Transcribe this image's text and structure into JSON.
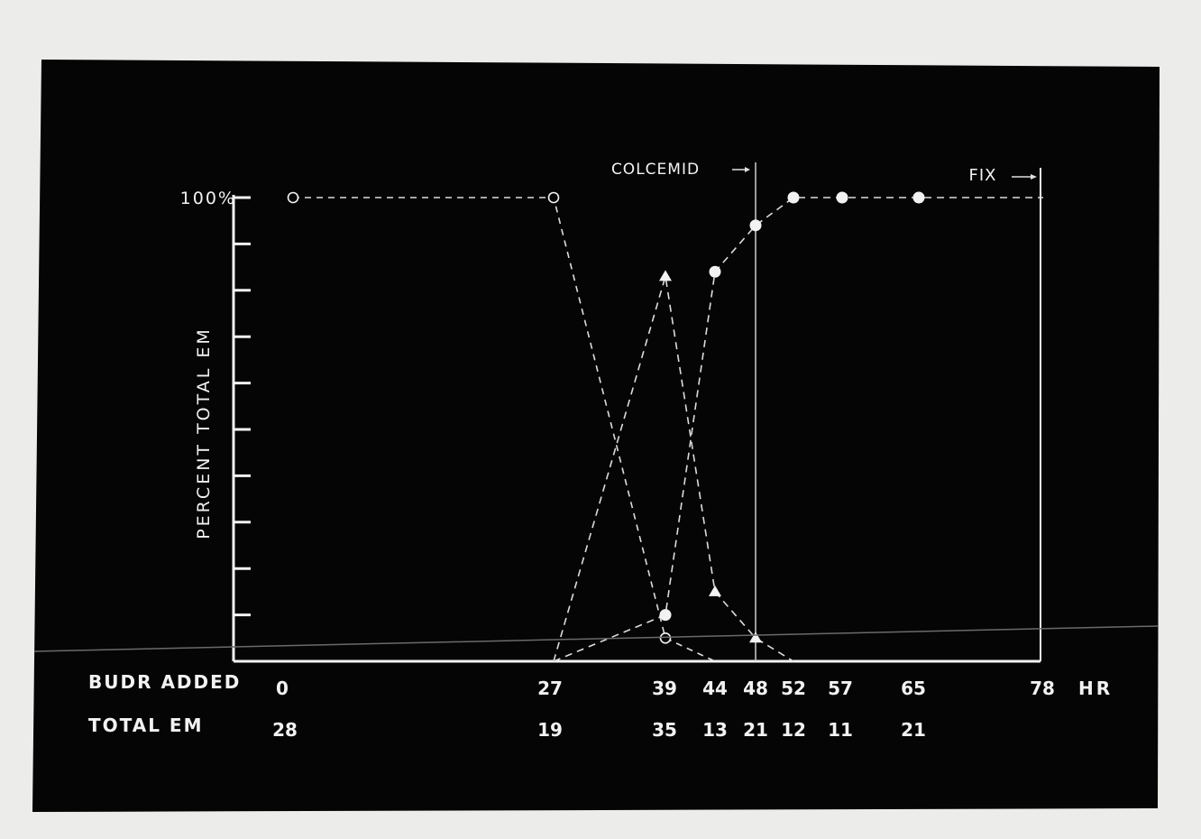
{
  "chart_data": {
    "type": "line",
    "title": "",
    "ylabel": "PERCENT TOTAL EM",
    "y_top_label": "100%",
    "ylim": [
      0,
      100
    ],
    "y_ticks": [
      0,
      10,
      20,
      30,
      40,
      50,
      60,
      70,
      80,
      90,
      100
    ],
    "xlim": [
      0,
      78
    ],
    "x_unit_label": "HR",
    "row_labels": {
      "budr": "BUDR ADDED",
      "total": "TOTAL EM"
    },
    "budr_added": [
      "0",
      "27",
      "39",
      "44",
      "48",
      "52",
      "57",
      "65",
      "78"
    ],
    "total_em": [
      {
        "x": 0,
        "label": "28"
      },
      {
        "x": 27,
        "label": "19"
      },
      {
        "x": 39,
        "label": "35"
      },
      {
        "x": 44,
        "label": "13"
      },
      {
        "x": 48,
        "label": "21"
      },
      {
        "x": 52,
        "label": "12"
      },
      {
        "x": 57,
        "label": "11"
      },
      {
        "x": 65,
        "label": "21"
      }
    ],
    "annotations": [
      {
        "text": "COLCEMID",
        "x": 48
      },
      {
        "text": "FIX",
        "x": 78
      }
    ],
    "series": [
      {
        "marker": "open-circle",
        "points": [
          [
            0,
            100
          ],
          [
            27,
            100
          ],
          [
            39,
            5
          ],
          [
            44,
            0
          ]
        ]
      },
      {
        "marker": "triangle",
        "points": [
          [
            27,
            0
          ],
          [
            39,
            83
          ],
          [
            44,
            15
          ],
          [
            48,
            5
          ],
          [
            52,
            0
          ]
        ]
      },
      {
        "marker": "filled-circle",
        "points": [
          [
            27,
            0
          ],
          [
            39,
            10
          ],
          [
            44,
            84
          ],
          [
            48,
            94
          ],
          [
            52,
            100
          ],
          [
            57,
            100
          ],
          [
            65,
            100
          ],
          [
            78,
            100
          ]
        ]
      }
    ],
    "colors": {
      "background": "#050505",
      "ink": "#f2f2f2",
      "paper": "#ececea"
    }
  }
}
